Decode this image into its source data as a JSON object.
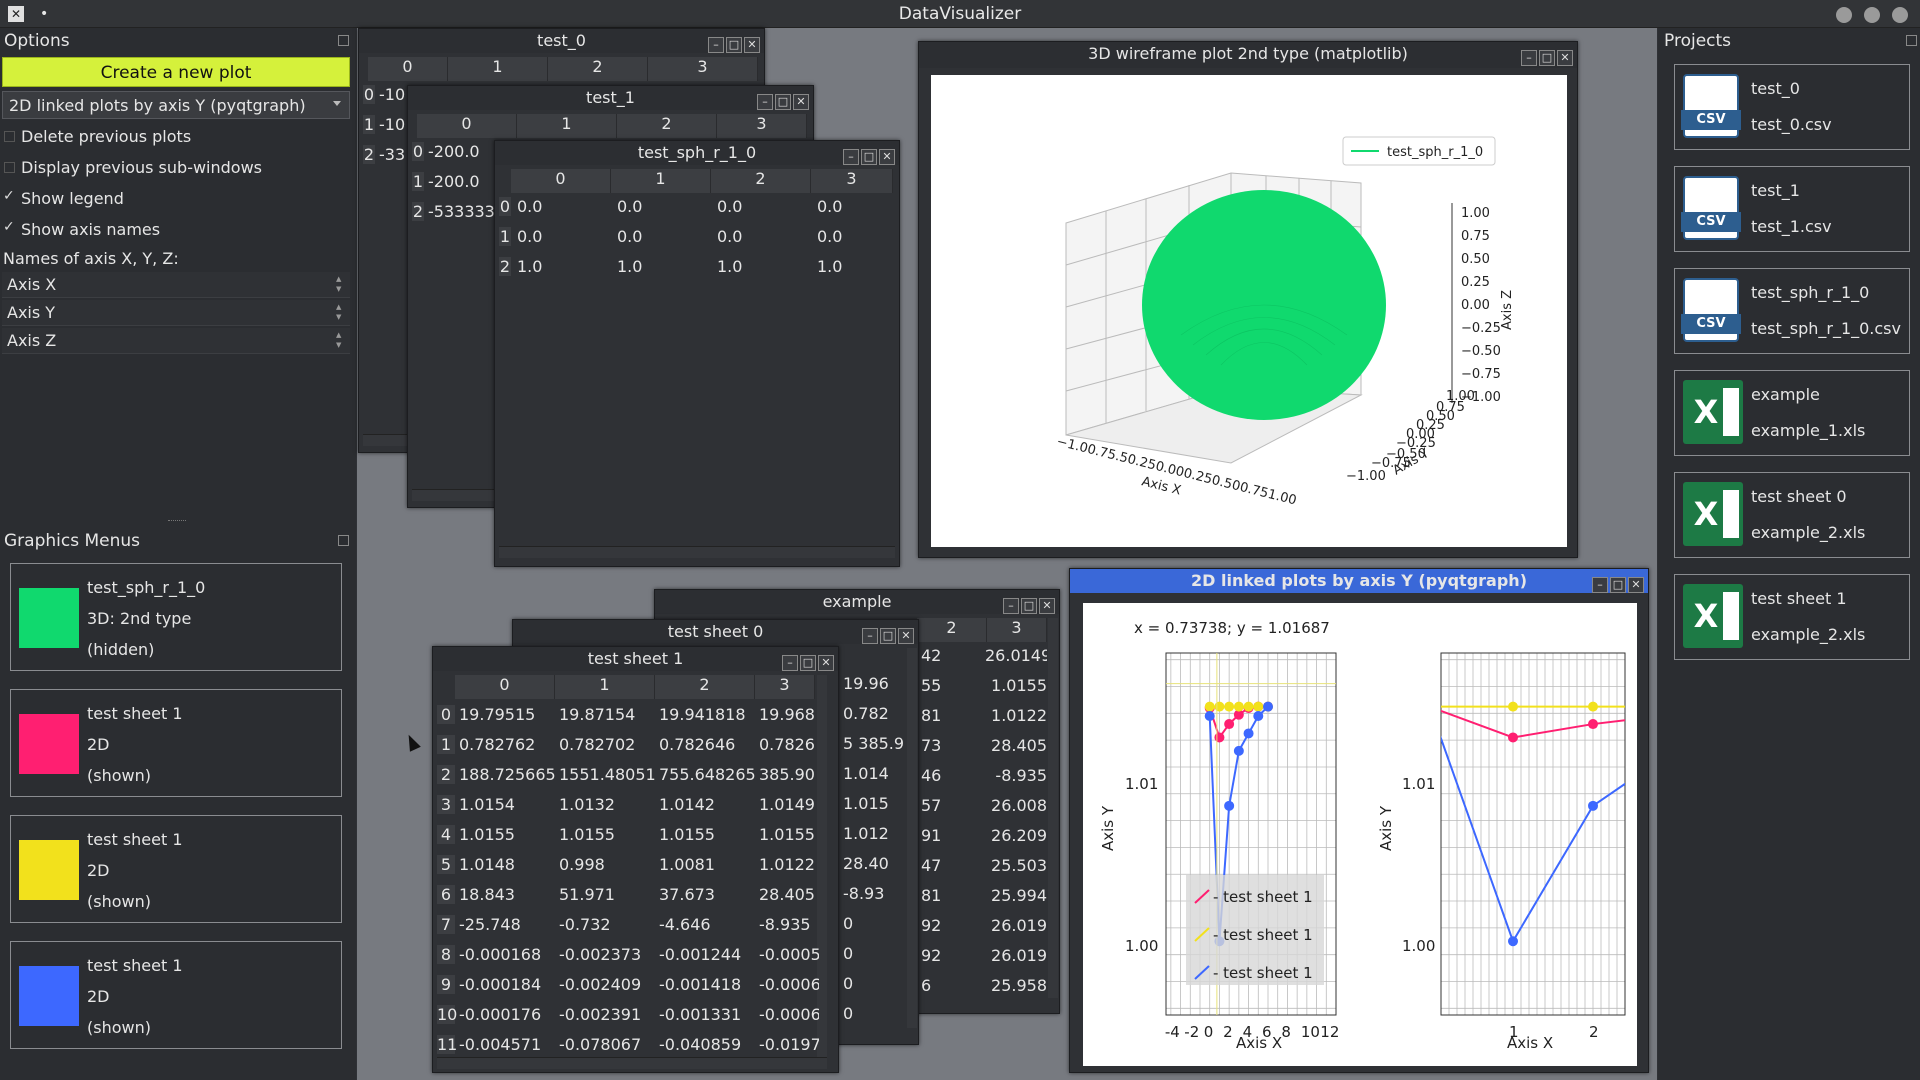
{
  "app": {
    "title": "DataVisualizer",
    "dot": "•"
  },
  "options": {
    "title": "Options",
    "create_button": "Create a new plot",
    "plot_type": "2D linked plots by axis Y (pyqtgraph)",
    "delete_previous": "Delete previous plots",
    "display_previous": "Display previous sub-windows",
    "show_legend": "Show legend",
    "show_axis_names": "Show axis names",
    "delete_checked": false,
    "display_checked": false,
    "legend_checked": true,
    "axisnames_checked": true,
    "check_mark": "✓",
    "axis_names_label": "Names of axis X, Y, Z:",
    "axis_x": "Axis X",
    "axis_y": "Axis Y",
    "axis_z": "Axis Z"
  },
  "graphics": {
    "title": "Graphics Menus",
    "items": [
      {
        "name": "test_sph_r_1_0",
        "type": "3D: 2nd type",
        "state": "(hidden)",
        "color": "#10d96e"
      },
      {
        "name": "test sheet 1",
        "type": "2D",
        "state": "(shown)",
        "color": "#ff1f71"
      },
      {
        "name": "test sheet 1",
        "type": "2D",
        "state": "(shown)",
        "color": "#f2e11c"
      },
      {
        "name": "test sheet 1",
        "type": "2D",
        "state": "(shown)",
        "color": "#3d68ff"
      }
    ]
  },
  "projects": {
    "title": "Projects",
    "items": [
      {
        "name": "test_0",
        "file": "test_0.csv",
        "icon": "csv-file-icon",
        "badge": "CSV"
      },
      {
        "name": "test_1",
        "file": "test_1.csv",
        "icon": "csv-file-icon",
        "badge": "CSV"
      },
      {
        "name": "test_sph_r_1_0",
        "file": "test_sph_r_1_0.csv",
        "icon": "csv-file-icon",
        "badge": "CSV"
      },
      {
        "name": "example",
        "file": "example_1.xls",
        "icon": "excel-file-icon",
        "badge": "X"
      },
      {
        "name": "test sheet 0",
        "file": "example_2.xls",
        "icon": "excel-file-icon",
        "badge": "X"
      },
      {
        "name": "test sheet 1",
        "file": "example_2.xls",
        "icon": "excel-file-icon",
        "badge": "X"
      }
    ]
  },
  "win_test0": {
    "title": "test_0",
    "cols": [
      "0",
      "1",
      "2",
      "3"
    ],
    "rows": [
      "0",
      "1",
      "2"
    ],
    "cells": [
      [
        "-10"
      ],
      [
        "-10"
      ],
      [
        "-33"
      ]
    ]
  },
  "win_test1": {
    "title": "test_1",
    "cols": [
      "0",
      "1",
      "2",
      "3"
    ],
    "rows": [
      "0",
      "1",
      "2"
    ],
    "cells": [
      [
        "-200.0"
      ],
      [
        "-200.0"
      ],
      [
        "-533333"
      ]
    ]
  },
  "win_sph": {
    "title": "test_sph_r_1_0",
    "cols": [
      "0",
      "1",
      "2",
      "3"
    ],
    "rows": [
      "0",
      "1",
      "2"
    ],
    "cells": [
      [
        "0.0",
        "0.0",
        "0.0",
        "0.0"
      ],
      [
        "0.0",
        "0.0",
        "0.0",
        "0.0"
      ],
      [
        "1.0",
        "1.0",
        "1.0",
        "1.0"
      ]
    ]
  },
  "win3d": {
    "title": "3D wireframe plot 2nd type (matplotlib)",
    "legend": "test_sph_r_1_0",
    "xlabel": "Axis X",
    "ylabel": "Axis Y",
    "zlabel": "Axis Z",
    "zticks": [
      "1.00",
      "0.75",
      "0.50",
      "0.25",
      "0.00",
      "−0.25",
      "−0.50",
      "−0.75",
      "−1.00"
    ],
    "xticks": "−1.00.75.50.250.000.250.500.751.00",
    "yticks": "−1.00.750.500.250.000.250.500.751.00",
    "ytick_list": [
      "1.00",
      "0.75",
      "0.50",
      "0.25",
      "0.00",
      "−0.25",
      "−0.50",
      "−0.75",
      "−1.00"
    ]
  },
  "win_example": {
    "title": "example",
    "cols": [
      "2",
      "3"
    ],
    "col2": [
      "42",
      "55",
      "81",
      "73",
      "46",
      "57",
      "91",
      "47",
      "81",
      "92",
      "92",
      "6"
    ],
    "col3": [
      "26.0149",
      "1.0155",
      "1.0122",
      "28.405",
      "-8.935",
      "26.008",
      "26.209",
      "25.503",
      "25.994",
      "26.019",
      "26.019",
      "25.958"
    ]
  },
  "win_sheet0": {
    "title": "test sheet 0",
    "col": [
      "19.96",
      "0.782",
      "5 385.9",
      "1.014",
      "1.015",
      "1.012",
      "28.40",
      "-8.93",
      "0",
      "0",
      "0",
      "0"
    ]
  },
  "win_sheet1": {
    "title": "test sheet 1",
    "cols": [
      "0",
      "1",
      "2",
      "3"
    ],
    "rows": [
      "0",
      "1",
      "2",
      "3",
      "4",
      "5",
      "6",
      "7",
      "8",
      "9",
      "10",
      "11"
    ],
    "cells": [
      [
        "19.79515",
        "19.87154",
        "19.941818",
        "19.968"
      ],
      [
        "0.782762",
        "0.782702",
        "0.782646",
        "0.7826"
      ],
      [
        "188.725665",
        "1551.48051",
        "755.648265",
        "385.90"
      ],
      [
        "1.0154",
        "1.0132",
        "1.0142",
        "1.0149"
      ],
      [
        "1.0155",
        "1.0155",
        "1.0155",
        "1.0155"
      ],
      [
        "1.0148",
        "0.998",
        "1.0081",
        "1.0122"
      ],
      [
        "18.843",
        "51.971",
        "37.673",
        "28.405"
      ],
      [
        "-25.748",
        "-0.732",
        "-4.646",
        "-8.935"
      ],
      [
        "-0.000168",
        "-0.002373",
        "-0.001244",
        "-0.0005"
      ],
      [
        "-0.000184",
        "-0.002409",
        "-0.001418",
        "-0.0006"
      ],
      [
        "-0.000176",
        "-0.002391",
        "-0.001331",
        "-0.0006"
      ],
      [
        "-0.004571",
        "-0.078067",
        "-0.040859",
        "-0.0197"
      ]
    ]
  },
  "win2d": {
    "title": "2D linked plots by axis Y (pyqtgraph)",
    "readout": "x = 0.73738; y = 1.01687",
    "left": {
      "xlabel": "Axis X",
      "ylabel": "Axis Y",
      "xticks": [
        "-4",
        "-2",
        "0",
        "2",
        "4",
        "6",
        "8",
        "10",
        "12"
      ],
      "yticks": [
        "1.01",
        "1.00"
      ]
    },
    "right": {
      "xlabel": "Axis X",
      "ylabel": "Axis Y",
      "xticks": [
        "1",
        "2"
      ],
      "yticks": [
        "1.01",
        "1.00"
      ]
    },
    "legend": [
      "- test sheet 1",
      "- test sheet 1",
      "- test sheet 1"
    ]
  },
  "chart_data": [
    {
      "type": "line",
      "title": "",
      "xlabel": "Axis X",
      "ylabel": "Axis Y",
      "xlim": [
        -4.5,
        13
      ],
      "series": [
        {
          "name": "test sheet 1",
          "color": "#ff1f71",
          "x": [
            0,
            1,
            2,
            3,
            4,
            5,
            6
          ],
          "y": [
            1.0154,
            1.0132,
            1.0142,
            1.0149,
            1.0154,
            1.0155,
            1.0155
          ]
        },
        {
          "name": "test sheet 1",
          "color": "#f2e11c",
          "x": [
            0,
            1,
            2,
            3,
            4,
            5,
            6
          ],
          "y": [
            1.0155,
            1.0155,
            1.0155,
            1.0155,
            1.0155,
            1.0155,
            1.0155
          ]
        },
        {
          "name": "test sheet 1",
          "color": "#3d68ff",
          "x": [
            0,
            1,
            2,
            3,
            4,
            5,
            6
          ],
          "y": [
            1.0148,
            0.998,
            1.0081,
            1.0122,
            1.0135,
            1.0148,
            1.0155
          ]
        }
      ]
    },
    {
      "type": "line",
      "title": "",
      "xlabel": "Axis X",
      "ylabel": "Axis Y",
      "series": [
        {
          "name": "test sheet 1",
          "color": "#ff1f71",
          "x": [
            0,
            1,
            2
          ],
          "y": [
            1.0154,
            1.0132,
            1.0142
          ]
        },
        {
          "name": "test sheet 1",
          "color": "#f2e11c",
          "x": [
            0,
            1,
            2
          ],
          "y": [
            1.0155,
            1.0155,
            1.0155
          ]
        },
        {
          "name": "test sheet 1",
          "color": "#3d68ff",
          "x": [
            0,
            1,
            2
          ],
          "y": [
            1.0148,
            0.998,
            1.0081
          ]
        }
      ]
    }
  ]
}
